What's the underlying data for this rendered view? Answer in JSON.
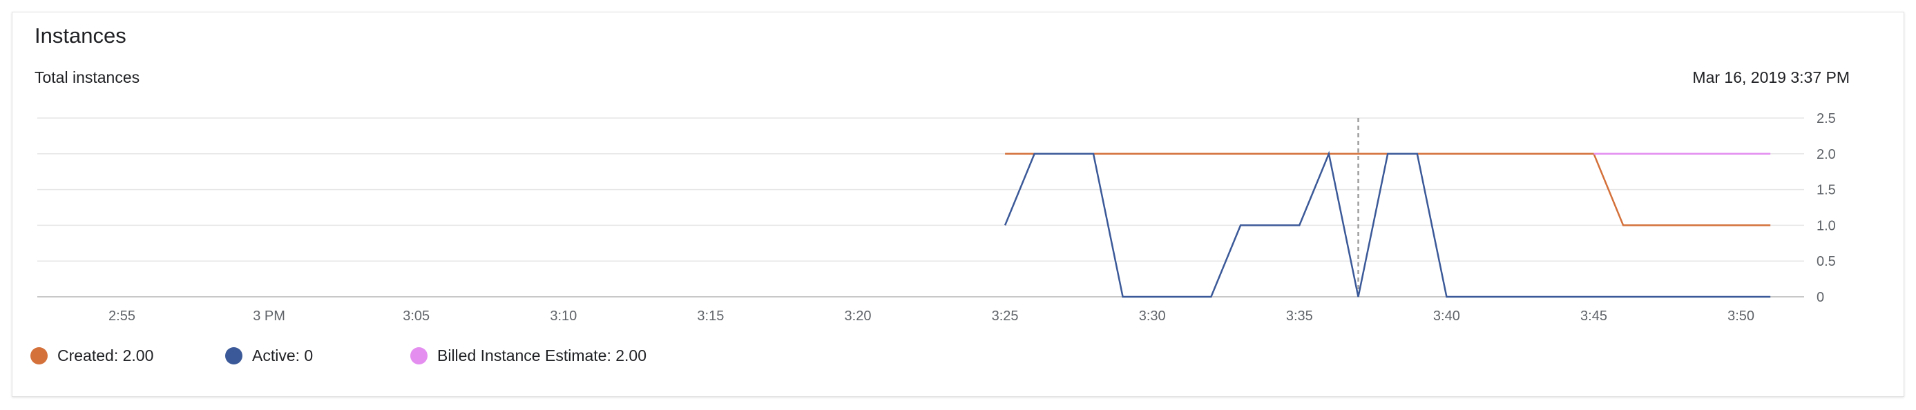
{
  "card": {
    "title": "Instances",
    "subtitle": "Total instances",
    "timestamp": "Mar 16, 2019 3:37 PM"
  },
  "legend": [
    {
      "label": "Created: 2.00",
      "color": "#d4703a"
    },
    {
      "label": "Active: 0",
      "color": "#3b5998"
    },
    {
      "label": "Billed Instance Estimate: 2.00",
      "color": "#e48ef0"
    }
  ],
  "chart_data": {
    "type": "line",
    "title": "Total instances",
    "xlabel": "",
    "ylabel": "",
    "x_unit": "minutes since 2:52 PM",
    "x_range": [
      0,
      60
    ],
    "ylim": [
      0,
      2.5
    ],
    "y_ticks": [
      "0",
      "0.5",
      "1.0",
      "1.5",
      "2.0",
      "2.5"
    ],
    "y_tick_values": [
      0,
      0.5,
      1.0,
      1.5,
      2.0,
      2.5
    ],
    "x_ticks": [
      {
        "label": "2:55",
        "t": 3
      },
      {
        "label": "3 PM",
        "t": 8
      },
      {
        "label": "3:05",
        "t": 13
      },
      {
        "label": "3:10",
        "t": 18
      },
      {
        "label": "3:15",
        "t": 23
      },
      {
        "label": "3:20",
        "t": 28
      },
      {
        "label": "3:25",
        "t": 33
      },
      {
        "label": "3:30",
        "t": 38
      },
      {
        "label": "3:35",
        "t": 43
      },
      {
        "label": "3:40",
        "t": 48
      },
      {
        "label": "3:45",
        "t": 53
      },
      {
        "label": "3:50",
        "t": 58
      }
    ],
    "cursor_t": 45,
    "grid": true,
    "legend_position": "bottom-left",
    "series": [
      {
        "name": "Created",
        "color": "#d4703a",
        "points": [
          [
            33,
            2
          ],
          [
            53,
            2
          ],
          [
            54,
            1
          ],
          [
            59,
            1
          ]
        ]
      },
      {
        "name": "Active",
        "color": "#3b5998",
        "points": [
          [
            33,
            1
          ],
          [
            34,
            2
          ],
          [
            36,
            2
          ],
          [
            37,
            0
          ],
          [
            40,
            0
          ],
          [
            41,
            1
          ],
          [
            43,
            1
          ],
          [
            44,
            2
          ],
          [
            45,
            0
          ],
          [
            46,
            2
          ],
          [
            47,
            2
          ],
          [
            48,
            0
          ],
          [
            59,
            0
          ]
        ]
      },
      {
        "name": "Billed Instance Estimate",
        "color": "#e48ef0",
        "points": [
          [
            53,
            2
          ],
          [
            59,
            2
          ]
        ]
      }
    ]
  }
}
